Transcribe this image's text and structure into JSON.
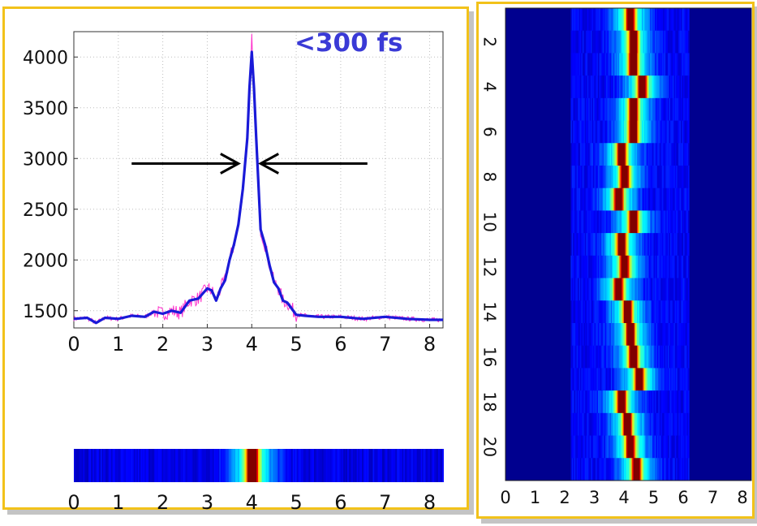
{
  "colors": {
    "panel_border": "#f2c21a",
    "line_smooth": "#1a1ad8",
    "line_raw": "#ff33cc",
    "annotation": "#3a3ad6",
    "heatmap_low": "#00008f"
  },
  "annotation": "<300 fs",
  "chart_data": [
    {
      "type": "line",
      "title": "",
      "xlabel": "",
      "ylabel": "",
      "xlim": [
        0,
        8.3
      ],
      "ylim": [
        1330,
        4250
      ],
      "grid": true,
      "x_ticks": [
        "0",
        "1",
        "2",
        "3",
        "4",
        "5",
        "6",
        "7",
        "8"
      ],
      "y_ticks": [
        "1500",
        "2000",
        "2500",
        "3000",
        "3500",
        "4000"
      ],
      "series": [
        {
          "style": "thick blue smoothed line",
          "x": [
            0,
            0.3,
            0.5,
            0.7,
            1.0,
            1.3,
            1.6,
            1.8,
            2.0,
            2.2,
            2.4,
            2.6,
            2.8,
            3.0,
            3.1,
            3.2,
            3.3,
            3.4,
            3.5,
            3.6,
            3.7,
            3.8,
            3.9,
            3.95,
            4.0,
            4.05,
            4.1,
            4.2,
            4.3,
            4.4,
            4.5,
            4.6,
            4.7,
            4.8,
            5.0,
            5.2,
            5.5,
            6.0,
            6.5,
            7.0,
            7.5,
            8.0,
            8.3
          ],
          "y": [
            1420,
            1430,
            1380,
            1430,
            1420,
            1450,
            1440,
            1490,
            1470,
            1500,
            1480,
            1600,
            1620,
            1720,
            1700,
            1600,
            1720,
            1800,
            2000,
            2150,
            2350,
            2700,
            3200,
            3700,
            4050,
            3700,
            3200,
            2300,
            2150,
            1950,
            1780,
            1720,
            1600,
            1580,
            1460,
            1450,
            1440,
            1440,
            1420,
            1440,
            1420,
            1410,
            1410
          ]
        },
        {
          "style": "thin magenta raw signal",
          "x_range": [
            0,
            8.3
          ],
          "peak_x": 4.0,
          "peak_y": 4230,
          "baseline_y": 1430
        }
      ],
      "annotations": [
        {
          "text": "<300 fs",
          "meaning": "width marker with two arrows at half maximum",
          "y": 2950
        }
      ]
    },
    {
      "type": "heatmap",
      "title": "",
      "xlim": [
        0,
        8.3
      ],
      "x_ticks": [
        "0",
        "1",
        "2",
        "3",
        "4",
        "5",
        "6",
        "7",
        "8"
      ],
      "rows": 1,
      "peak_x": 4.0,
      "colormap": "jet"
    },
    {
      "type": "heatmap",
      "title": "",
      "xlim": [
        0,
        8.3
      ],
      "x_ticks": [
        "0",
        "1",
        "2",
        "3",
        "4",
        "5",
        "6",
        "7",
        "8"
      ],
      "y_ticks": [
        "2",
        "4",
        "6",
        "8",
        "10",
        "12",
        "14",
        "16",
        "18",
        "20"
      ],
      "rows": 21,
      "colormap": "jet",
      "row_peaks_x": [
        4.2,
        4.3,
        4.3,
        4.6,
        4.3,
        4.3,
        3.9,
        4.0,
        3.8,
        4.3,
        3.9,
        4.0,
        3.8,
        4.1,
        4.2,
        4.3,
        4.5,
        3.9,
        4.1,
        4.2,
        4.4
      ]
    }
  ]
}
